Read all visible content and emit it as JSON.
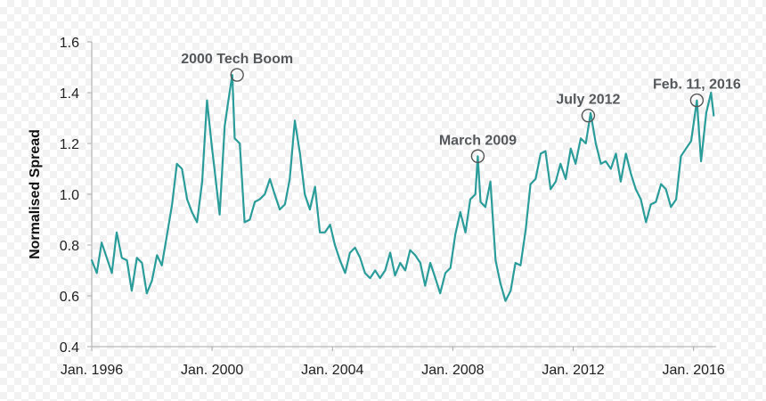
{
  "chart_data": {
    "type": "line",
    "title": "",
    "xlabel": "",
    "ylabel": "Normalised Spread",
    "ylim": [
      0.4,
      1.6
    ],
    "yticks": [
      "0.4",
      "0.6",
      "0.8",
      "1.0",
      "1.2",
      "1.4",
      "1.6"
    ],
    "xlim": [
      1996.0,
      2016.75
    ],
    "xticks": [
      {
        "x": 1996.0,
        "label": "Jan. 1996"
      },
      {
        "x": 2000.0,
        "label": "Jan. 2000"
      },
      {
        "x": 2004.0,
        "label": "Jan. 2004"
      },
      {
        "x": 2008.0,
        "label": "Jan. 2008"
      },
      {
        "x": 2012.0,
        "label": "Jan. 2012"
      },
      {
        "x": 2016.0,
        "label": "Jan. 2016"
      }
    ],
    "grid": false,
    "series": [
      {
        "name": "Normalised Spread",
        "color": "#2a9d9b",
        "x": [
          1996.0,
          1996.17,
          1996.33,
          1996.5,
          1996.67,
          1996.83,
          1997.0,
          1997.17,
          1997.33,
          1997.5,
          1997.67,
          1997.83,
          1998.0,
          1998.17,
          1998.33,
          1998.5,
          1998.67,
          1998.83,
          1999.0,
          1999.17,
          1999.33,
          1999.5,
          1999.67,
          1999.83,
          2000.0,
          2000.08,
          2000.25,
          2000.42,
          2000.58,
          2000.67,
          2000.75,
          2000.92,
          2001.08,
          2001.25,
          2001.42,
          2001.58,
          2001.75,
          2001.92,
          2002.08,
          2002.25,
          2002.42,
          2002.58,
          2002.75,
          2002.92,
          2003.08,
          2003.25,
          2003.42,
          2003.58,
          2003.75,
          2003.92,
          2004.08,
          2004.25,
          2004.42,
          2004.58,
          2004.75,
          2004.92,
          2005.08,
          2005.25,
          2005.42,
          2005.58,
          2005.75,
          2005.92,
          2006.08,
          2006.25,
          2006.42,
          2006.58,
          2006.75,
          2006.92,
          2007.08,
          2007.25,
          2007.42,
          2007.58,
          2007.75,
          2007.92,
          2008.08,
          2008.25,
          2008.42,
          2008.58,
          2008.75,
          2008.83,
          2008.92,
          2009.08,
          2009.25,
          2009.42,
          2009.58,
          2009.75,
          2009.92,
          2010.08,
          2010.25,
          2010.42,
          2010.58,
          2010.75,
          2010.92,
          2011.08,
          2011.25,
          2011.42,
          2011.58,
          2011.75,
          2011.92,
          2012.08,
          2012.25,
          2012.42,
          2012.58,
          2012.75,
          2012.92,
          2013.08,
          2013.25,
          2013.42,
          2013.58,
          2013.75,
          2013.92,
          2014.08,
          2014.25,
          2014.42,
          2014.58,
          2014.75,
          2014.92,
          2015.08,
          2015.25,
          2015.42,
          2015.58,
          2015.75,
          2015.92,
          2016.11,
          2016.25,
          2016.42,
          2016.58,
          2016.67
        ],
        "values": [
          0.74,
          0.69,
          0.81,
          0.75,
          0.69,
          0.85,
          0.75,
          0.74,
          0.62,
          0.75,
          0.73,
          0.61,
          0.66,
          0.76,
          0.72,
          0.84,
          0.96,
          1.12,
          1.1,
          0.98,
          0.93,
          0.89,
          1.05,
          1.37,
          1.18,
          1.1,
          0.92,
          1.27,
          1.4,
          1.47,
          1.22,
          1.2,
          0.89,
          0.9,
          0.97,
          0.98,
          1.0,
          1.06,
          1.0,
          0.94,
          0.96,
          1.06,
          1.29,
          1.16,
          1.0,
          0.94,
          1.03,
          0.85,
          0.85,
          0.88,
          0.8,
          0.74,
          0.69,
          0.77,
          0.79,
          0.75,
          0.69,
          0.67,
          0.7,
          0.67,
          0.7,
          0.77,
          0.68,
          0.73,
          0.7,
          0.78,
          0.76,
          0.73,
          0.64,
          0.73,
          0.67,
          0.61,
          0.69,
          0.71,
          0.84,
          0.93,
          0.85,
          0.98,
          1.0,
          1.15,
          0.97,
          0.95,
          1.05,
          0.74,
          0.65,
          0.58,
          0.62,
          0.73,
          0.72,
          0.86,
          1.04,
          1.06,
          1.16,
          1.17,
          1.02,
          1.05,
          1.12,
          1.06,
          1.18,
          1.12,
          1.22,
          1.2,
          1.32,
          1.2,
          1.12,
          1.13,
          1.1,
          1.16,
          1.05,
          1.16,
          1.08,
          1.02,
          0.98,
          0.89,
          0.96,
          0.97,
          1.04,
          1.02,
          0.95,
          0.98,
          1.15,
          1.18,
          1.21,
          1.37,
          1.13,
          1.32,
          1.4,
          1.31
        ]
      }
    ],
    "annotations": [
      {
        "text": "2000 Tech Boom",
        "x": 2000.83,
        "y": 1.47
      },
      {
        "text": "March 2009",
        "x": 2008.83,
        "y": 1.15
      },
      {
        "text": "July 2012",
        "x": 2012.5,
        "y": 1.31
      },
      {
        "text": "Feb. 11, 2016",
        "x": 2016.11,
        "y": 1.37
      }
    ]
  }
}
